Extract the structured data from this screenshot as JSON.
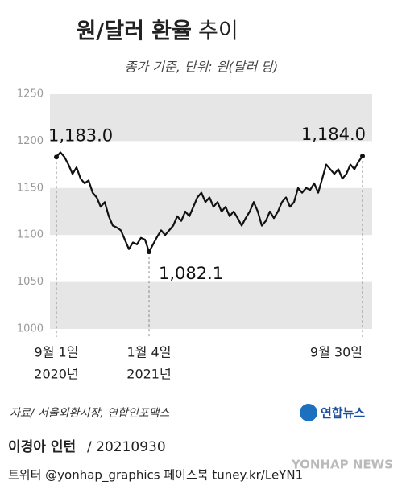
{
  "chart_data": {
    "type": "line",
    "title": "원/달러 환율",
    "title_light": "추이",
    "subtitle": "종가 기준, 단위: 원(달러 당)",
    "categories": [
      "9월 1일",
      null,
      null,
      null,
      null,
      null,
      null,
      null,
      null,
      null,
      null,
      null,
      null,
      null,
      null,
      null,
      null,
      null,
      null,
      null,
      null,
      null,
      null,
      "1월 4일",
      null,
      null,
      null,
      null,
      null,
      null,
      null,
      null,
      null,
      null,
      null,
      null,
      null,
      null,
      null,
      null,
      null,
      null,
      null,
      null,
      null,
      null,
      null,
      null,
      null,
      null,
      null,
      null,
      null,
      null,
      null,
      null,
      null,
      null,
      null,
      null,
      null,
      null,
      null,
      null,
      null,
      null,
      null,
      null,
      null,
      null,
      null,
      null,
      null,
      null,
      null,
      null,
      "9월 30일"
    ],
    "year_labels": [
      "2020년",
      null,
      null,
      null,
      null,
      null,
      null,
      null,
      null,
      null,
      null,
      null,
      null,
      null,
      null,
      null,
      null,
      null,
      null,
      null,
      null,
      null,
      null,
      "2021년",
      null,
      null,
      null,
      null,
      null,
      null,
      null,
      null,
      null,
      null,
      null,
      null,
      null,
      null,
      null,
      null,
      null,
      null,
      null,
      null,
      null,
      null,
      null,
      null,
      null,
      null,
      null,
      null,
      null,
      null,
      null,
      null,
      null,
      null,
      null,
      null,
      null,
      null,
      null,
      null,
      null,
      null,
      null,
      null,
      null,
      null,
      null,
      null,
      null,
      null,
      null,
      null,
      null
    ],
    "values": [
      1183,
      1188,
      1183,
      1175,
      1165,
      1172,
      1160,
      1155,
      1158,
      1145,
      1140,
      1130,
      1135,
      1120,
      1110,
      1108,
      1105,
      1095,
      1085,
      1092,
      1090,
      1097,
      1095,
      1082.1,
      1090,
      1098,
      1105,
      1100,
      1105,
      1110,
      1120,
      1115,
      1125,
      1120,
      1130,
      1140,
      1145,
      1135,
      1140,
      1130,
      1135,
      1125,
      1130,
      1120,
      1125,
      1118,
      1110,
      1118,
      1125,
      1135,
      1125,
      1110,
      1115,
      1125,
      1118,
      1125,
      1135,
      1140,
      1130,
      1135,
      1150,
      1145,
      1150,
      1148,
      1155,
      1145,
      1160,
      1175,
      1170,
      1165,
      1170,
      1160,
      1165,
      1175,
      1170,
      1178,
      1184
    ],
    "value_labels": [
      "1,183.0",
      null,
      null,
      null,
      null,
      null,
      null,
      null,
      null,
      null,
      null,
      null,
      null,
      null,
      null,
      null,
      null,
      null,
      null,
      null,
      null,
      null,
      null,
      "1,082.1",
      null,
      null,
      null,
      null,
      null,
      null,
      null,
      null,
      null,
      null,
      null,
      null,
      null,
      null,
      null,
      null,
      null,
      null,
      null,
      null,
      null,
      null,
      null,
      null,
      null,
      null,
      null,
      null,
      null,
      null,
      null,
      null,
      null,
      null,
      null,
      null,
      null,
      null,
      null,
      null,
      null,
      null,
      null,
      null,
      null,
      null,
      null,
      null,
      null,
      null,
      null,
      null,
      "1,184.0"
    ],
    "color": "#111111",
    "ylim": [
      1000,
      1250
    ],
    "yticks": [
      1000,
      1050,
      1100,
      1150,
      1200,
      1250
    ],
    "band_color": "#e6e6e6",
    "source": "자료/ 서울외환시장, 연합인포맥스",
    "logo": "연합뉴스"
  },
  "footer": {
    "author": "이경아 인턴",
    "date": "/ 20210930",
    "social": "트위터 @yonhap_graphics  페이스북 tuney.kr/LeYN1",
    "watermark": "YONHAP NEWS"
  }
}
